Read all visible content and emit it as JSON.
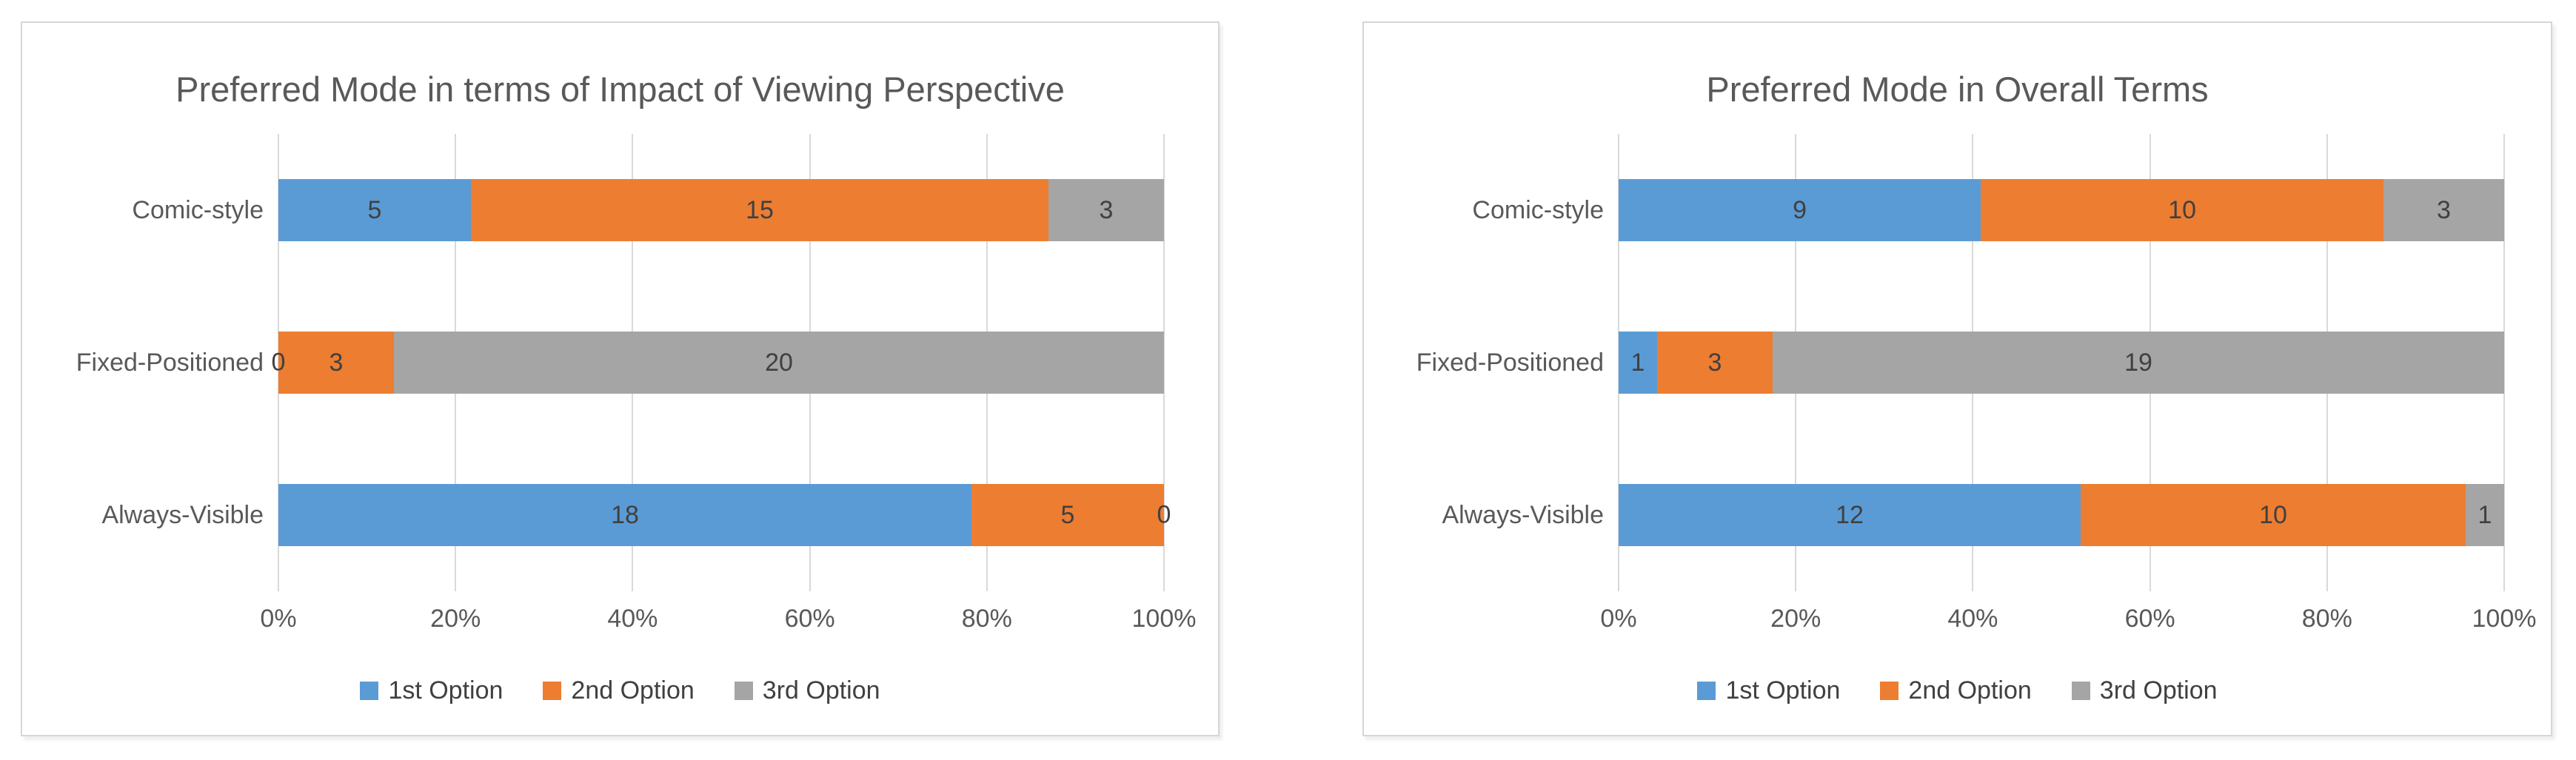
{
  "page": {
    "background": "#FFFFFF"
  },
  "chart_data": [
    {
      "type": "bar",
      "orientation": "horizontal",
      "stacked": true,
      "normalized": "100%-stacked",
      "title": "Preferred Mode in terms of Impact of Viewing Perspective",
      "categories": [
        "Comic-style",
        "Fixed-Positioned",
        "Always-Visible"
      ],
      "series": [
        {
          "name": "1st Option",
          "color": "#5B9BD5",
          "values": [
            5,
            0,
            18
          ]
        },
        {
          "name": "2nd Option",
          "color": "#ED7D31",
          "values": [
            15,
            3,
            5
          ]
        },
        {
          "name": "3rd Option",
          "color": "#A5A5A5",
          "values": [
            3,
            20,
            0
          ]
        }
      ],
      "x_ticks": [
        "0%",
        "20%",
        "40%",
        "60%",
        "80%",
        "100%"
      ],
      "xlim": [
        0,
        100
      ],
      "grid": true,
      "legend_position": "bottom"
    },
    {
      "type": "bar",
      "orientation": "horizontal",
      "stacked": true,
      "normalized": "100%-stacked",
      "title": "Preferred Mode in Overall Terms",
      "categories": [
        "Comic-style",
        "Fixed-Positioned",
        "Always-Visible"
      ],
      "series": [
        {
          "name": "1st Option",
          "color": "#5B9BD5",
          "values": [
            9,
            1,
            12
          ]
        },
        {
          "name": "2nd Option",
          "color": "#ED7D31",
          "values": [
            10,
            3,
            10
          ]
        },
        {
          "name": "3rd Option",
          "color": "#A5A5A5",
          "values": [
            3,
            19,
            1
          ]
        }
      ],
      "x_ticks": [
        "0%",
        "20%",
        "40%",
        "60%",
        "80%",
        "100%"
      ],
      "xlim": [
        0,
        100
      ],
      "grid": true,
      "legend_position": "bottom"
    }
  ]
}
